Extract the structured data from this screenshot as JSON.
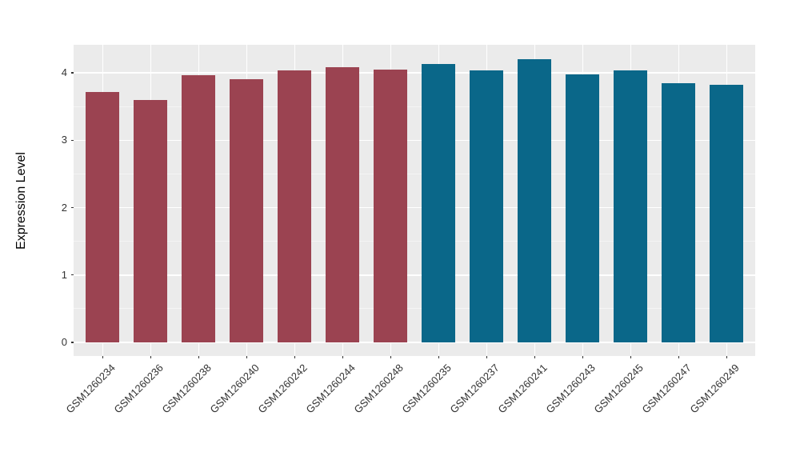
{
  "chart_data": {
    "type": "bar",
    "title": "",
    "xlabel": "",
    "ylabel": "Expression Level",
    "categories": [
      "GSM1260234",
      "GSM1260236",
      "GSM1260238",
      "GSM1260240",
      "GSM1260242",
      "GSM1260244",
      "GSM1260248",
      "GSM1260235",
      "GSM1260237",
      "GSM1260241",
      "GSM1260243",
      "GSM1260245",
      "GSM1260247",
      "GSM1260249"
    ],
    "values": [
      3.72,
      3.6,
      3.97,
      3.9,
      4.03,
      4.08,
      4.05,
      4.13,
      4.03,
      4.2,
      3.98,
      4.03,
      3.85,
      3.82
    ],
    "groups": [
      0,
      0,
      0,
      0,
      0,
      0,
      0,
      1,
      1,
      1,
      1,
      1,
      1,
      1
    ],
    "group_colors": [
      "#9B4351",
      "#0A6789"
    ],
    "yticks": [
      "0",
      "1",
      "2",
      "3",
      "4"
    ],
    "ytick_values": [
      0,
      1,
      2,
      3,
      4
    ],
    "minor_ytick_values": [
      0.5,
      1.5,
      2.5,
      3.5
    ],
    "ylim": [
      0,
      4.42
    ],
    "grid": "on",
    "legend": "none",
    "x_label_rotation_deg": 45,
    "colors": {
      "panel_background": "#EBEBEB",
      "major_gridline": "#FFFFFF",
      "minor_gridline": "#F5F5F5",
      "tick_label": "#333333",
      "axis_title": "#000000",
      "figure_background": "#FFFFFF"
    }
  }
}
